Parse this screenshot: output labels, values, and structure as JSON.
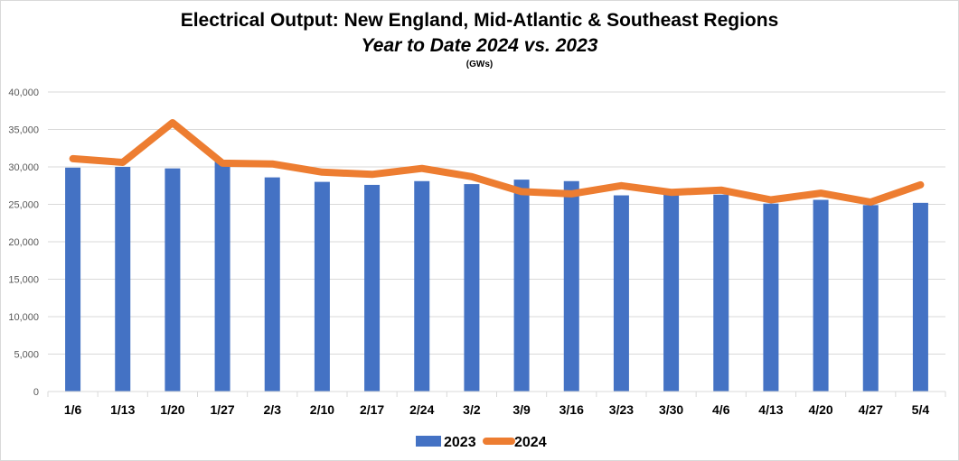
{
  "chart_data": {
    "type": "bar",
    "title": "Electrical Output:  New England, Mid-Atlantic & Southeast Regions",
    "subtitle": "Year to Date 2024 vs. 2023",
    "unit_label": "(GWs)",
    "xlabel": "",
    "ylabel": "",
    "ylim": [
      0,
      40000
    ],
    "yticks": [
      0,
      5000,
      10000,
      15000,
      20000,
      25000,
      30000,
      35000,
      40000
    ],
    "ytick_labels": [
      "0",
      "5,000",
      "10,000",
      "15,000",
      "20,000",
      "25,000",
      "30,000",
      "35,000",
      "40,000"
    ],
    "grid": true,
    "legend_position": "bottom",
    "categories": [
      "1/6",
      "1/13",
      "1/20",
      "1/27",
      "2/3",
      "2/10",
      "2/17",
      "2/24",
      "3/2",
      "3/9",
      "3/16",
      "3/23",
      "3/30",
      "4/6",
      "4/13",
      "4/20",
      "4/27",
      "5/4"
    ],
    "series": [
      {
        "name": "2023",
        "kind": "bar",
        "color": "#4472c4",
        "values": [
          29900,
          30000,
          29800,
          30700,
          28600,
          28000,
          27600,
          28100,
          27700,
          28300,
          28100,
          26200,
          26300,
          26300,
          25100,
          25600,
          24900,
          25200
        ]
      },
      {
        "name": "2024",
        "kind": "line",
        "color": "#ed7d31",
        "values": [
          31100,
          30600,
          35900,
          30500,
          30400,
          29300,
          29000,
          29800,
          28700,
          26700,
          26400,
          27500,
          26600,
          26900,
          25600,
          26500,
          25300,
          27600
        ]
      }
    ]
  }
}
